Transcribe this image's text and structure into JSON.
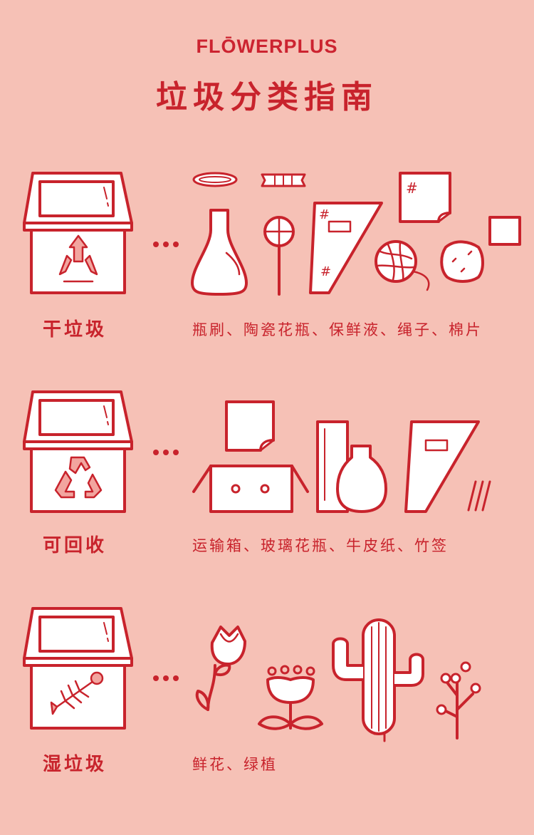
{
  "brand": "FLŌWERPLUS",
  "title": "垃圾分类指南",
  "categories": [
    {
      "label": "干垃圾",
      "items": "瓶刷、陶瓷花瓶、保鲜液、绳子、棉片",
      "bin_icon": "triangle-arrows-icon"
    },
    {
      "label": "可回收",
      "items": "运输箱、玻璃花瓶、牛皮纸、竹签",
      "bin_icon": "recycle-icon"
    },
    {
      "label": "湿垃圾",
      "items": "鲜花、绿植",
      "bin_icon": "fish-bone-icon"
    }
  ],
  "colors": {
    "background": "#f6c1b6",
    "line": "#c8232c",
    "fill": "#ffffff",
    "tint": "#f2a59f"
  }
}
